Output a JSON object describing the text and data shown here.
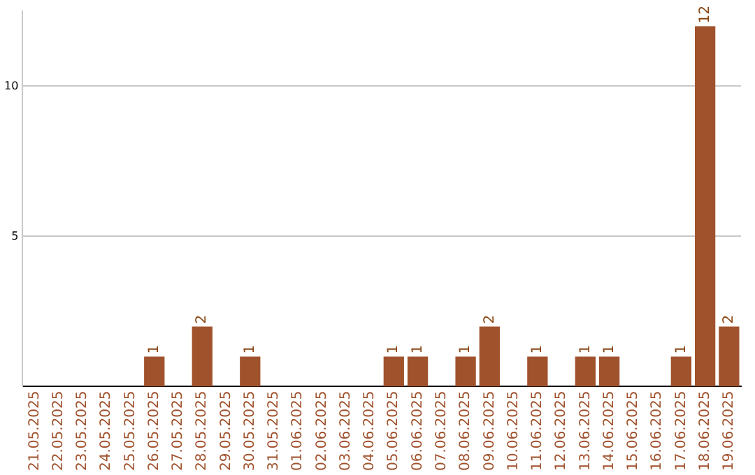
{
  "chart_data": {
    "type": "bar",
    "categories": [
      "21.05.2025",
      "22.05.2025",
      "23.05.2025",
      "24.05.2025",
      "25.05.2025",
      "26.05.2025",
      "27.05.2025",
      "28.05.2025",
      "29.05.2025",
      "30.05.2025",
      "31.05.2025",
      "01.06.2025",
      "02.06.2025",
      "03.06.2025",
      "04.06.2025",
      "05.06.2025",
      "06.06.2025",
      "07.06.2025",
      "08.06.2025",
      "09.06.2025",
      "10.06.2025",
      "11.06.2025",
      "12.06.2025",
      "13.06.2025",
      "14.06.2025",
      "15.06.2025",
      "16.06.2025",
      "17.06.2025",
      "18.06.2025",
      "19.06.2025"
    ],
    "values": [
      0,
      0,
      0,
      0,
      0,
      1,
      0,
      2,
      0,
      1,
      0,
      0,
      0,
      0,
      0,
      1,
      1,
      0,
      1,
      2,
      0,
      1,
      0,
      1,
      1,
      0,
      0,
      1,
      12,
      2
    ],
    "value_labels": [
      null,
      null,
      null,
      null,
      null,
      "1",
      null,
      "2",
      null,
      "1",
      null,
      null,
      null,
      null,
      null,
      "1",
      "1",
      null,
      "1",
      "2",
      null,
      "1",
      null,
      "1",
      "1",
      null,
      null,
      "1",
      "12",
      "2"
    ],
    "color": "#a0522d",
    "ylim": [
      0,
      12.5
    ],
    "yticks": [
      5,
      10
    ],
    "grid": "y",
    "legend": false
  }
}
